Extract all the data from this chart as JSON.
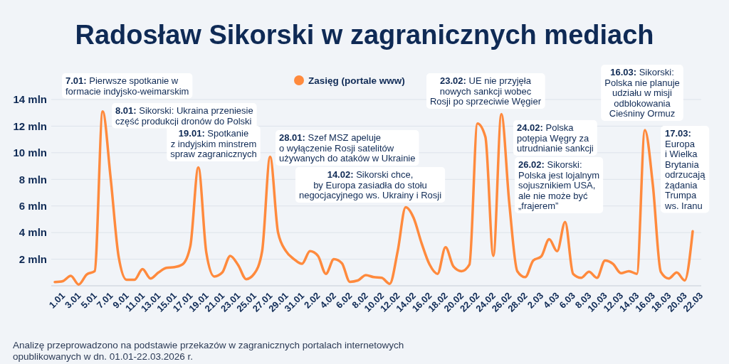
{
  "chart_data": {
    "type": "line",
    "title": "Radosław Sikorski w zagranicznych mediach",
    "categories": [
      "1.01",
      null,
      "3.01",
      null,
      "5.01",
      null,
      "7.01",
      null,
      "9.01",
      null,
      "11.01",
      null,
      "13.01",
      null,
      "15.01",
      null,
      "17.01",
      null,
      "19.01",
      null,
      "21.01",
      null,
      "23.01",
      null,
      "25.01",
      null,
      "27.01",
      null,
      "29.01",
      null,
      "31.01",
      null,
      "2.02",
      null,
      "4.02",
      null,
      "6.02",
      null,
      "8.02",
      null,
      "10.02",
      null,
      "12.02",
      null,
      "14.02",
      null,
      "16.02",
      null,
      "18.02",
      null,
      "20.02",
      null,
      "22.02",
      null,
      "24.02",
      null,
      "26.02",
      null,
      "28.02",
      null,
      "2.03",
      null,
      "4.03",
      null,
      "6.03",
      null,
      "8.03",
      null,
      "10.03",
      null,
      "12.03",
      null,
      "14.03",
      null,
      "16.03",
      null,
      "18.03",
      null,
      "20.03",
      null,
      "22.03"
    ],
    "series": [
      {
        "name": "Zasięg (portale www)",
        "color": "#ff8a3d",
        "values": [
          0.28,
          0.35,
          0.75,
          0.1,
          0.85,
          1.1,
          13.1,
          8.1,
          2.2,
          0.45,
          0.45,
          1.25,
          0.55,
          1.0,
          1.35,
          1.4,
          1.6,
          3.0,
          8.9,
          2.5,
          0.7,
          1.0,
          2.25,
          1.55,
          0.5,
          0.9,
          2.6,
          9.7,
          4.0,
          2.6,
          2.0,
          1.65,
          2.6,
          2.25,
          0.9,
          2.0,
          1.7,
          0.3,
          0.4,
          0.8,
          0.65,
          0.6,
          0.15,
          2.6,
          5.9,
          5.1,
          3.2,
          1.6,
          0.9,
          2.9,
          1.45,
          1.1,
          1.6,
          12.2,
          11.2,
          2.25,
          12.9,
          6.2,
          1.1,
          0.65,
          1.9,
          2.2,
          3.5,
          2.6,
          4.8,
          0.9,
          0.6,
          1.05,
          0.6,
          1.9,
          1.65,
          0.95,
          1.1,
          0.9,
          11.7,
          7.6,
          1.05,
          0.55,
          1.0,
          0.4,
          4.1
        ]
      }
    ],
    "ylim": [
      0,
      14
    ],
    "yticks": [
      {
        "value": 2,
        "label": "2 mln"
      },
      {
        "value": 4,
        "label": "4 mln"
      },
      {
        "value": 6,
        "label": "6 mln"
      },
      {
        "value": 8,
        "label": "8 mln"
      },
      {
        "value": 10,
        "label": "10 mln"
      },
      {
        "value": 12,
        "label": "12 mln"
      },
      {
        "value": 14,
        "label": "14 mln"
      }
    ],
    "grid": "y",
    "legend": "top",
    "marker": "none",
    "line_style": "solid",
    "annotations": [
      "7.01: Pierwsze spotkanie w\nformacie indyjsko-weimarskim",
      "8.01: Sikorski: Ukraina przeniesie\nczęść produkcji dronów do Polski",
      "19.01: Spotkanie\nz indyjskim minstrem\nspraw zagranicznych",
      "28.01: Szef MSZ apeluje\no wyłączenie Rosji satelitów\nużywanych do ataków w Ukrainie",
      "14.02: Sikorski chce,\nby Europa zasiadła do stołu\nnegocjacyjnego ws. Ukrainy i Rosji",
      "23.02: UE nie przyjęła\nnowych sankcji wobec\nRosji po sprzeciwie Węgier",
      "24.02: Polska\npotępia Węgry za\nutrudnianie sankcji",
      "26.02: Sikorski:\nPolska jest lojalnym\nsojusznikiem USA,\nale nie może być\n„frajerem”",
      "16.03: Sikorski:\nPolska nie planuje\nudziału w misji\nodblokowania\nCieśniny Ormuz",
      "17.03:\nEuropa\ni Wielka\nBrytania\nodrzucają\nżądania\nTrumpa\nws. Iranu",
      "Analizę przeprowadzono na podstawie przekazów w zagranicznych portalach internetowych\nopublikowanych w dn. 01.01-22.03.2026 r."
    ]
  }
}
